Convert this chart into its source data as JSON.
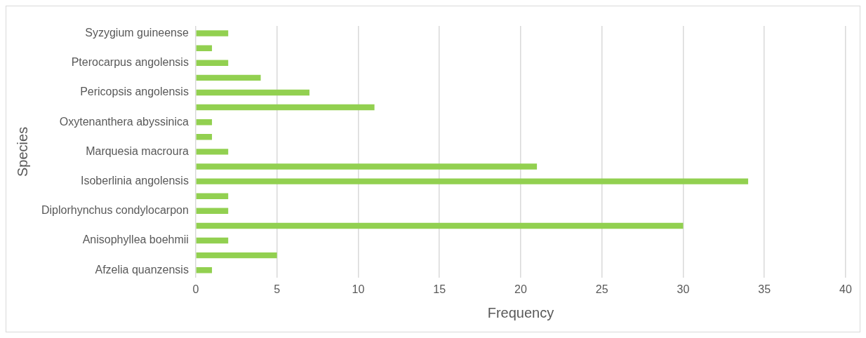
{
  "chart_data": {
    "type": "bar",
    "orientation": "horizontal",
    "xlabel": "Frequency",
    "ylabel": "Species",
    "categories": [
      "Syzygium guineense",
      null,
      "Pterocarpus angolensis",
      null,
      "Pericopsis angolensis",
      null,
      "Oxytenanthera abyssinica",
      null,
      "Marquesia macroura",
      null,
      "Isoberlinia angolensis",
      null,
      "Diplorhynchus condylocarpon",
      null,
      "Anisophyllea boehmii",
      null,
      "Afzelia quanzensis"
    ],
    "values": [
      2,
      1,
      2,
      4,
      7,
      11,
      1,
      1,
      2,
      21,
      34,
      2,
      2,
      30,
      2,
      5,
      1
    ],
    "color": "#92d050",
    "xlim": [
      0,
      40
    ],
    "xticks": [
      0,
      5,
      10,
      15,
      20,
      25,
      30,
      35,
      40
    ],
    "grid": "x",
    "legend": false
  }
}
